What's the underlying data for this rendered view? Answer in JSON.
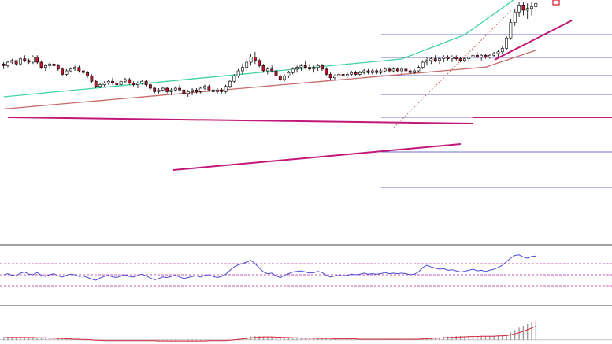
{
  "chart_data": [
    {
      "type": "candlestick",
      "panel": "price",
      "title": "",
      "xlabel": "",
      "ylabel": "",
      "ylim": [
        0,
        100
      ],
      "grid": false,
      "legend": "none",
      "colors": {
        "bull": "#ffffff",
        "bear": "#c0152a",
        "wick": "#000000"
      },
      "candles": [
        [
          64,
          65,
          61,
          63
        ],
        [
          63,
          66,
          62,
          65
        ],
        [
          65,
          67,
          64,
          66
        ],
        [
          66,
          66,
          63,
          64
        ],
        [
          64,
          68,
          63,
          67
        ],
        [
          67,
          69,
          65,
          66
        ],
        [
          66,
          67,
          64,
          65
        ],
        [
          65,
          69,
          64,
          68
        ],
        [
          68,
          69,
          64,
          65
        ],
        [
          65,
          66,
          61,
          62
        ],
        [
          62,
          64,
          60,
          63
        ],
        [
          63,
          65,
          62,
          64
        ],
        [
          64,
          65,
          62,
          63
        ],
        [
          63,
          64,
          60,
          61
        ],
        [
          61,
          62,
          57,
          58
        ],
        [
          58,
          61,
          57,
          60
        ],
        [
          60,
          62,
          59,
          61
        ],
        [
          61,
          63,
          60,
          62
        ],
        [
          62,
          63,
          59,
          60
        ],
        [
          60,
          61,
          58,
          59
        ],
        [
          59,
          60,
          56,
          57
        ],
        [
          57,
          58,
          53,
          54
        ],
        [
          54,
          55,
          50,
          51
        ],
        [
          51,
          53,
          50,
          52
        ],
        [
          52,
          54,
          51,
          53
        ],
        [
          53,
          55,
          52,
          54
        ],
        [
          54,
          56,
          52,
          53
        ],
        [
          53,
          54,
          51,
          52
        ],
        [
          52,
          55,
          51,
          54
        ],
        [
          54,
          56,
          53,
          55
        ],
        [
          55,
          56,
          52,
          53
        ],
        [
          53,
          54,
          51,
          52
        ],
        [
          52,
          54,
          50,
          53
        ],
        [
          53,
          55,
          52,
          54
        ],
        [
          54,
          55,
          51,
          52
        ],
        [
          52,
          53,
          49,
          50
        ],
        [
          50,
          51,
          47,
          48
        ],
        [
          48,
          50,
          47,
          49
        ],
        [
          49,
          51,
          48,
          50
        ],
        [
          50,
          51,
          47,
          48
        ],
        [
          48,
          50,
          46,
          49
        ],
        [
          49,
          51,
          48,
          50
        ],
        [
          50,
          52,
          48,
          49
        ],
        [
          49,
          50,
          46,
          47
        ],
        [
          47,
          49,
          45,
          48
        ],
        [
          48,
          50,
          46,
          49
        ],
        [
          49,
          50,
          47,
          48
        ],
        [
          48,
          51,
          47,
          50
        ],
        [
          50,
          52,
          49,
          51
        ],
        [
          51,
          52,
          48,
          49
        ],
        [
          49,
          50,
          46,
          48
        ],
        [
          48,
          50,
          47,
          49
        ],
        [
          49,
          50,
          47,
          48
        ],
        [
          48,
          52,
          47,
          51
        ],
        [
          51,
          55,
          50,
          54
        ],
        [
          54,
          58,
          53,
          57
        ],
        [
          57,
          61,
          56,
          60
        ],
        [
          60,
          64,
          58,
          62
        ],
        [
          62,
          67,
          60,
          65
        ],
        [
          65,
          70,
          63,
          68
        ],
        [
          68,
          71,
          64,
          66
        ],
        [
          66,
          67,
          62,
          63
        ],
        [
          63,
          64,
          59,
          60
        ],
        [
          60,
          62,
          58,
          61
        ],
        [
          61,
          63,
          59,
          60
        ],
        [
          60,
          61,
          56,
          57
        ],
        [
          57,
          58,
          54,
          55
        ],
        [
          55,
          58,
          54,
          57
        ],
        [
          57,
          60,
          56,
          59
        ],
        [
          59,
          62,
          58,
          61
        ],
        [
          61,
          63,
          59,
          62
        ],
        [
          62,
          64,
          60,
          63
        ],
        [
          63,
          66,
          61,
          62
        ],
        [
          62,
          64,
          60,
          61
        ],
        [
          61,
          63,
          59,
          62
        ],
        [
          62,
          64,
          60,
          63
        ],
        [
          63,
          64,
          60,
          61
        ],
        [
          61,
          62,
          57,
          58
        ],
        [
          58,
          59,
          55,
          56
        ],
        [
          56,
          58,
          55,
          57
        ],
        [
          57,
          59,
          56,
          58
        ],
        [
          58,
          59,
          56,
          57
        ],
        [
          57,
          59,
          56,
          58
        ],
        [
          58,
          60,
          57,
          59
        ],
        [
          59,
          60,
          57,
          58
        ],
        [
          58,
          60,
          57,
          59
        ],
        [
          59,
          61,
          58,
          60
        ],
        [
          60,
          61,
          58,
          59
        ],
        [
          59,
          61,
          58,
          60
        ],
        [
          60,
          61,
          58,
          59
        ],
        [
          59,
          61,
          58,
          60
        ],
        [
          60,
          62,
          59,
          61
        ],
        [
          61,
          62,
          59,
          60
        ],
        [
          60,
          62,
          59,
          61
        ],
        [
          61,
          62,
          59,
          60
        ],
        [
          60,
          62,
          58,
          61
        ],
        [
          61,
          62,
          59,
          60
        ],
        [
          60,
          61,
          58,
          59
        ],
        [
          59,
          61,
          58,
          60
        ],
        [
          60,
          63,
          59,
          62
        ],
        [
          62,
          66,
          61,
          65
        ],
        [
          65,
          68,
          63,
          66
        ],
        [
          66,
          68,
          64,
          67
        ],
        [
          67,
          69,
          65,
          66
        ],
        [
          66,
          68,
          64,
          67
        ],
        [
          67,
          69,
          65,
          68
        ],
        [
          68,
          69,
          66,
          67
        ],
        [
          67,
          69,
          65,
          68
        ],
        [
          68,
          69,
          66,
          67
        ],
        [
          67,
          68,
          65,
          66
        ],
        [
          66,
          68,
          65,
          67
        ],
        [
          67,
          69,
          65,
          68
        ],
        [
          68,
          70,
          66,
          69
        ],
        [
          69,
          71,
          67,
          68
        ],
        [
          68,
          70,
          66,
          69
        ],
        [
          69,
          70,
          67,
          68
        ],
        [
          68,
          70,
          67,
          69
        ],
        [
          69,
          71,
          68,
          70
        ],
        [
          70,
          72,
          68,
          71
        ],
        [
          71,
          74,
          70,
          73
        ],
        [
          73,
          80,
          72,
          79
        ],
        [
          79,
          90,
          78,
          88
        ],
        [
          88,
          96,
          86,
          94
        ],
        [
          94,
          100,
          91,
          98
        ],
        [
          98,
          100,
          92,
          95
        ],
        [
          95,
          99,
          90,
          96
        ],
        [
          96,
          100,
          92,
          97
        ],
        [
          97,
          100,
          93,
          99
        ]
      ]
    },
    {
      "type": "line",
      "panel": "rsi",
      "title": "",
      "ylim": [
        0,
        100
      ],
      "levels": [
        70,
        50,
        30
      ],
      "series": [
        {
          "color": "#4a4ad4",
          "values": [
            50,
            52,
            49,
            48,
            53,
            55,
            51,
            50,
            54,
            49,
            47,
            50,
            52,
            48,
            46,
            49,
            51,
            50,
            47,
            48,
            45,
            42,
            40,
            44,
            47,
            49,
            46,
            45,
            48,
            50,
            47,
            46,
            49,
            51,
            48,
            44,
            41,
            43,
            46,
            45,
            47,
            49,
            46,
            43,
            45,
            47,
            48,
            46,
            49,
            50,
            47,
            45,
            47,
            51,
            58,
            64,
            68,
            70,
            73,
            76,
            70,
            62,
            55,
            52,
            53,
            48,
            45,
            49,
            52,
            55,
            56,
            57,
            55,
            53,
            54,
            56,
            54,
            49,
            46,
            48,
            49,
            48,
            49,
            51,
            50,
            51,
            53,
            51,
            52,
            51,
            52,
            54,
            52,
            53,
            52,
            53,
            52,
            50,
            51,
            55,
            63,
            67,
            64,
            62,
            60,
            61,
            58,
            59,
            57,
            55,
            56,
            58,
            60,
            57,
            58,
            56,
            58,
            60,
            63,
            67,
            74,
            80,
            85,
            86,
            82,
            80,
            83,
            84
          ]
        }
      ]
    },
    {
      "type": "bar",
      "panel": "macd",
      "title": "",
      "ylim": [
        -10,
        100
      ],
      "values": [
        8,
        9,
        9,
        8,
        8,
        7,
        7,
        7,
        6,
        6,
        5,
        5,
        4,
        4,
        3,
        3,
        2,
        2,
        1,
        0,
        -1,
        -2,
        -2,
        -3,
        -3,
        -3,
        -3,
        -3,
        -2,
        -2,
        -2,
        -2,
        -2,
        -2,
        -2,
        -3,
        -3,
        -3,
        -3,
        -3,
        -3,
        -3,
        -3,
        -3,
        -3,
        -3,
        -3,
        -2,
        -2,
        -2,
        -2,
        -2,
        -2,
        -1,
        0,
        2,
        4,
        6,
        8,
        10,
        11,
        11,
        10,
        9,
        8,
        7,
        6,
        5,
        5,
        4,
        4,
        4,
        4,
        4,
        4,
        4,
        4,
        3,
        2,
        2,
        2,
        2,
        2,
        2,
        2,
        2,
        2,
        2,
        2,
        2,
        2,
        2,
        2,
        2,
        2,
        2,
        2,
        2,
        2,
        3,
        4,
        5,
        6,
        7,
        8,
        9,
        10,
        10,
        11,
        11,
        11,
        11,
        12,
        12,
        12,
        12,
        12,
        12,
        13,
        14,
        17,
        23,
        30,
        37,
        43,
        49,
        54,
        58
      ],
      "series": [
        {
          "color": "#d6263a",
          "values": [
            6,
            7,
            7,
            7,
            7,
            7,
            7,
            7,
            6,
            6,
            6,
            5,
            5,
            4,
            4,
            3,
            3,
            2,
            2,
            1,
            1,
            0,
            -1,
            -1,
            -2,
            -2,
            -2,
            -2,
            -2,
            -2,
            -2,
            -2,
            -2,
            -2,
            -2,
            -2,
            -2,
            -3,
            -3,
            -3,
            -3,
            -3,
            -3,
            -3,
            -3,
            -3,
            -3,
            -3,
            -3,
            -2,
            -2,
            -2,
            -2,
            -2,
            -1,
            0,
            1,
            3,
            4,
            6,
            7,
            8,
            9,
            9,
            9,
            8,
            8,
            7,
            7,
            6,
            6,
            5,
            5,
            5,
            5,
            4,
            4,
            4,
            4,
            3,
            3,
            3,
            3,
            3,
            3,
            2,
            2,
            2,
            2,
            2,
            2,
            2,
            2,
            2,
            2,
            2,
            2,
            2,
            2,
            2,
            3,
            3,
            4,
            5,
            5,
            6,
            7,
            7,
            8,
            9,
            9,
            10,
            10,
            10,
            11,
            11,
            11,
            11,
            12,
            12,
            13,
            15,
            18,
            22,
            26,
            31,
            36,
            41
          ]
        }
      ]
    }
  ]
}
